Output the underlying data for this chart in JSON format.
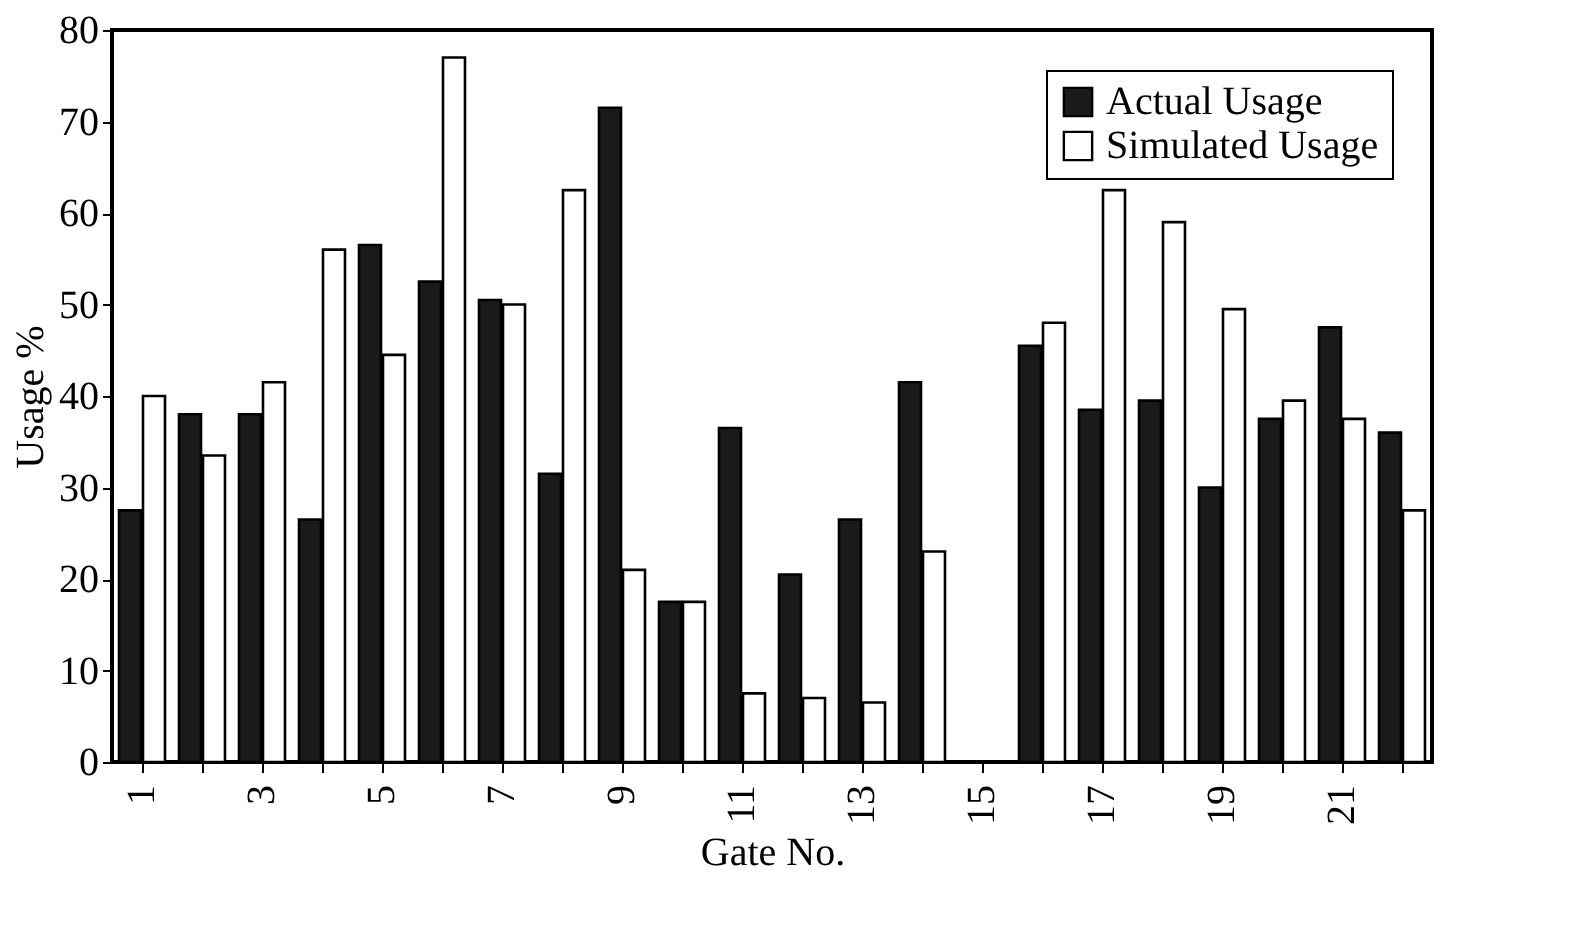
{
  "chart_data": {
    "type": "bar",
    "xlabel": "Gate No.",
    "ylabel": "Usage %",
    "categories": [
      "1",
      null,
      "3",
      null,
      "5",
      null,
      "7",
      null,
      "9",
      null,
      "11",
      null,
      "13",
      null,
      "15",
      null,
      "17",
      null,
      "19",
      null,
      "21",
      null
    ],
    "series": [
      {
        "name": "Actual Usage",
        "color": "#1a1a1a",
        "values": [
          27.5,
          38,
          38,
          26.5,
          56.5,
          52.5,
          50.5,
          31.5,
          71.5,
          17.5,
          36.5,
          20.5,
          26.5,
          41.5,
          null,
          45.5,
          38.5,
          39.5,
          30,
          37.5,
          47.5,
          36
        ]
      },
      {
        "name": "Simulated Usage",
        "color": "#ffffff",
        "values": [
          40,
          33.5,
          41.5,
          56,
          44.5,
          77,
          50,
          62.5,
          21,
          17.5,
          7.5,
          7,
          6.5,
          23,
          null,
          48,
          62.5,
          59,
          49.5,
          39.5,
          37.5,
          27.5
        ]
      }
    ],
    "ylim": [
      0,
      80
    ],
    "yticks": [
      0,
      10,
      20,
      30,
      40,
      50,
      60,
      70,
      80
    ],
    "grid": false,
    "legend": "top right"
  }
}
